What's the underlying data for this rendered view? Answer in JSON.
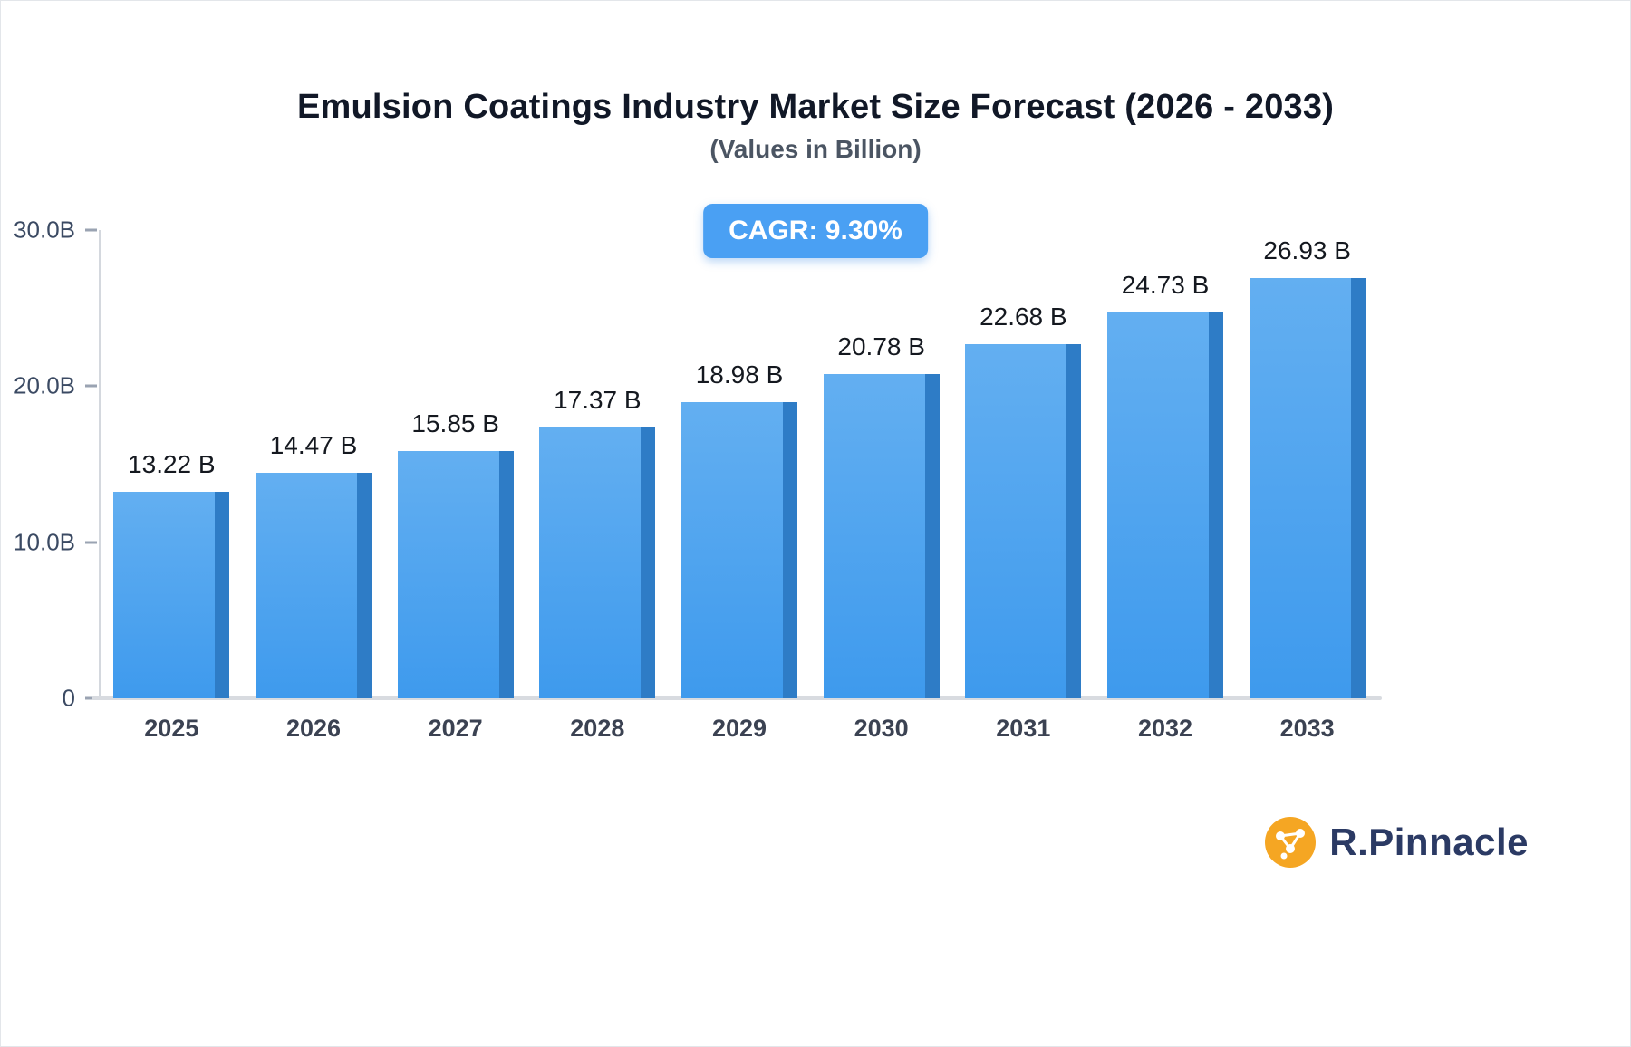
{
  "title": "Emulsion Coatings Industry Market Size Forecast (2026 - 2033)",
  "subtitle": "(Values in Billion)",
  "badge": {
    "label": "CAGR: 9.30%",
    "bg": "#4aa0f3"
  },
  "chart_data": {
    "type": "bar",
    "title": "Emulsion Coatings Industry Market Size Forecast (2026 - 2033)",
    "subtitle": "(Values in Billion)",
    "categories": [
      "2025",
      "2026",
      "2027",
      "2028",
      "2029",
      "2030",
      "2031",
      "2032",
      "2033"
    ],
    "values": [
      13.22,
      14.47,
      15.85,
      17.37,
      18.98,
      20.78,
      22.68,
      24.73,
      26.93
    ],
    "value_labels": [
      "13.22 B",
      "14.47 B",
      "15.85 B",
      "17.37 B",
      "18.98 B",
      "20.78 B",
      "22.68 B",
      "24.73 B",
      "26.93 B"
    ],
    "xlabel": "",
    "ylabel": "",
    "ylim": [
      0,
      30
    ],
    "yticks": [
      {
        "value": 30,
        "label": "30.0B"
      },
      {
        "value": 20,
        "label": "20.0B"
      },
      {
        "value": 10,
        "label": "10.0B"
      },
      {
        "value": 0,
        "label": "0"
      }
    ],
    "grid": false,
    "legend": "none",
    "annotation": "CAGR: 9.30%",
    "bar_color_top": "#63AFF1",
    "bar_color_bottom": "#3E9AED",
    "bar_side_color": "#2E7CC6"
  },
  "logo": {
    "text": "R.Pinnacle",
    "icon_color": "#F5A623",
    "text_color": "#2b3a64"
  }
}
